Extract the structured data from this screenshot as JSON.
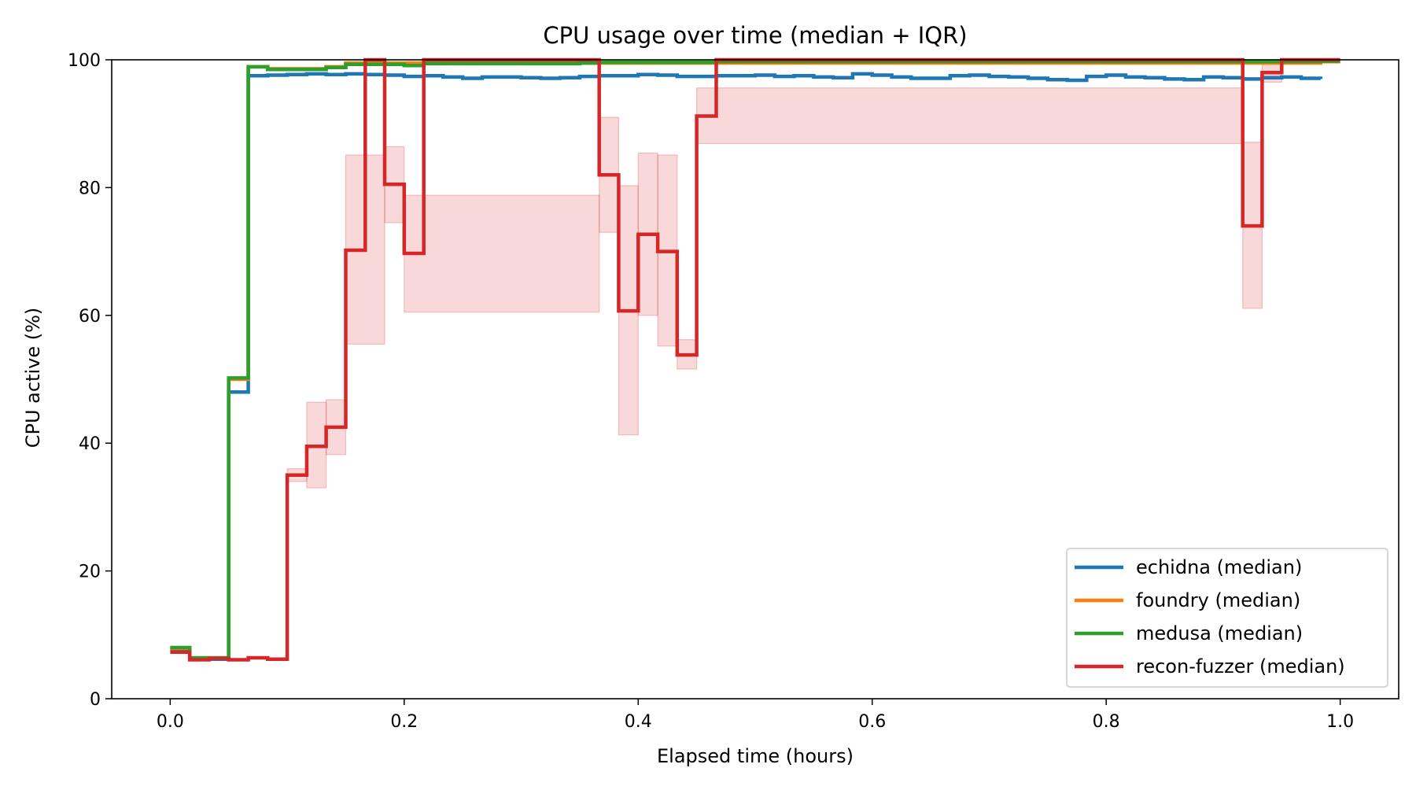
{
  "chart_data": {
    "type": "line",
    "step": "post",
    "title": "CPU usage over time (median + IQR)",
    "xlabel": "Elapsed time (hours)",
    "ylabel": "CPU active (%)",
    "xlim": [
      -0.05,
      1.05
    ],
    "ylim": [
      0,
      100
    ],
    "xticks": [
      0.0,
      0.2,
      0.4,
      0.6,
      0.8,
      1.0
    ],
    "xtick_labels": [
      "0.0",
      "0.2",
      "0.4",
      "0.6",
      "0.8",
      "1.0"
    ],
    "yticks": [
      0,
      20,
      40,
      60,
      80,
      100
    ],
    "ytick_labels": [
      "0",
      "20",
      "40",
      "60",
      "80",
      "100"
    ],
    "grid": false,
    "legend_position": "bottom-right",
    "series": [
      {
        "name": "echidna (median)",
        "color": "#1f77b4",
        "x": [
          0.0,
          0.0167,
          0.05,
          0.0667,
          0.0833,
          0.1,
          0.1167,
          0.1333,
          0.15,
          0.1667,
          0.1833,
          0.2,
          0.2167,
          0.2333,
          0.25,
          0.2667,
          0.2833,
          0.3,
          0.3167,
          0.3333,
          0.35,
          0.3667,
          0.3833,
          0.4,
          0.4167,
          0.4333,
          0.45,
          0.4667,
          0.4833,
          0.5,
          0.5167,
          0.5333,
          0.55,
          0.5667,
          0.5833,
          0.6,
          0.6167,
          0.6333,
          0.65,
          0.6667,
          0.6833,
          0.7,
          0.7167,
          0.7333,
          0.75,
          0.7667,
          0.7833,
          0.8,
          0.8167,
          0.8333,
          0.85,
          0.8667,
          0.8833,
          0.9,
          0.9167,
          0.9333,
          0.95,
          0.9667,
          0.9833
        ],
        "y": [
          7.8,
          6.2,
          48.0,
          97.5,
          97.6,
          97.7,
          97.8,
          97.7,
          97.8,
          97.7,
          97.6,
          97.4,
          97.5,
          97.3,
          97.1,
          97.3,
          97.3,
          97.2,
          97.1,
          97.2,
          97.4,
          97.5,
          97.5,
          97.7,
          97.6,
          97.4,
          97.4,
          97.5,
          97.5,
          97.6,
          97.4,
          97.5,
          97.3,
          97.2,
          97.8,
          97.6,
          97.3,
          97.1,
          97.1,
          97.5,
          97.6,
          97.4,
          97.3,
          97.1,
          96.9,
          96.8,
          97.4,
          97.6,
          97.3,
          97.2,
          97.0,
          96.9,
          97.3,
          97.2,
          97.0,
          97.2,
          97.3,
          97.1,
          97.0
        ],
        "end_x": 0.9833
      },
      {
        "name": "foundry (median)",
        "color": "#ff7f0e",
        "x": [
          0.0,
          0.0167,
          0.05,
          0.0667,
          0.0833,
          0.1333,
          0.15,
          0.9833
        ],
        "y": [
          7.9,
          6.3,
          50.0,
          98.9,
          98.6,
          98.9,
          99.5,
          99.7
        ],
        "end_x": 1.0
      },
      {
        "name": "medusa (median)",
        "color": "#2ca02c",
        "x": [
          0.0,
          0.0167,
          0.05,
          0.0667,
          0.0833,
          0.1333,
          0.15,
          0.2,
          0.2167,
          0.35,
          0.3667,
          0.4667,
          0.9833
        ],
        "y": [
          8.0,
          6.4,
          50.2,
          98.9,
          98.5,
          98.8,
          99.3,
          99.1,
          99.4,
          99.5,
          99.6,
          99.7,
          99.8
        ],
        "end_x": 1.0
      },
      {
        "name": "recon-fuzzer (median)",
        "color": "#d62728",
        "x": [
          0.0,
          0.0167,
          0.0333,
          0.05,
          0.0667,
          0.0833,
          0.1,
          0.1167,
          0.1333,
          0.15,
          0.1667,
          0.1833,
          0.2,
          0.2167,
          0.3667,
          0.3833,
          0.4,
          0.4167,
          0.4333,
          0.45,
          0.4667,
          0.9167,
          0.9333,
          0.95,
          0.9667,
          0.9833
        ],
        "y": [
          7.3,
          6.1,
          6.3,
          6.1,
          6.4,
          6.2,
          35.0,
          39.5,
          42.5,
          70.2,
          100.0,
          80.5,
          69.7,
          100.0,
          82.0,
          60.7,
          72.7,
          70.0,
          53.8,
          91.2,
          100.0,
          74.0,
          98.0,
          100.0,
          100.0,
          100.0
        ],
        "end_x": 1.0,
        "iqr": {
          "x": [
            0.1,
            0.1167,
            0.1333,
            0.15,
            0.1833,
            0.2,
            0.3667,
            0.3833,
            0.4,
            0.4167,
            0.4333,
            0.45,
            0.9167,
            0.9333
          ],
          "lo": [
            34.0,
            33.0,
            38.2,
            55.5,
            74.5,
            60.5,
            73.0,
            41.3,
            60.0,
            55.2,
            51.6,
            86.9,
            61.1,
            96.5
          ],
          "hi": [
            36.0,
            46.4,
            46.8,
            85.1,
            86.4,
            78.8,
            91.0,
            80.3,
            85.4,
            85.1,
            56.2,
            95.6,
            87.1,
            99.5
          ],
          "end_x": 0.95
        }
      }
    ]
  }
}
